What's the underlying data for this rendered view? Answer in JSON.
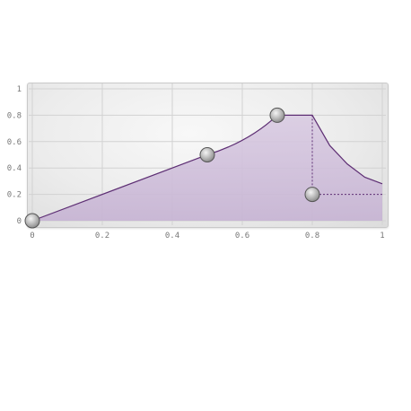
{
  "chart_data": {
    "type": "area",
    "title": "",
    "xlabel": "",
    "ylabel": "",
    "xlim": [
      0,
      1
    ],
    "ylim": [
      0,
      1
    ],
    "x_ticks": [
      "0",
      "0.2",
      "0.4",
      "0.6",
      "0.8",
      "1"
    ],
    "y_ticks": [
      "1",
      "0.8",
      "0.6",
      "0.4",
      "0.2",
      "0"
    ],
    "grid": true,
    "control_points": [
      {
        "x": 0.0,
        "y": 0.0
      },
      {
        "x": 0.5,
        "y": 0.5
      },
      {
        "x": 0.7,
        "y": 0.8
      },
      {
        "x": 0.8,
        "y": 0.2
      }
    ],
    "envelope": {
      "attack_end": {
        "x": 0.5,
        "y": 0.5
      },
      "peak": {
        "x": 0.7,
        "y": 0.8
      },
      "sustain_end_x": 0.8,
      "release_tail": [
        {
          "x": 0.8,
          "y": 0.8
        },
        {
          "x": 0.85,
          "y": 0.57
        },
        {
          "x": 0.9,
          "y": 0.43
        },
        {
          "x": 0.95,
          "y": 0.33
        },
        {
          "x": 1.0,
          "y": 0.28
        }
      ],
      "sustain_level": 0.2
    }
  },
  "colors": {
    "curve": "#5e2f74",
    "fill": "#d3c4dd",
    "fill_bottom": "#c8b6d4",
    "grid": "#d2d2d2",
    "handle": "#9a9a9a"
  }
}
